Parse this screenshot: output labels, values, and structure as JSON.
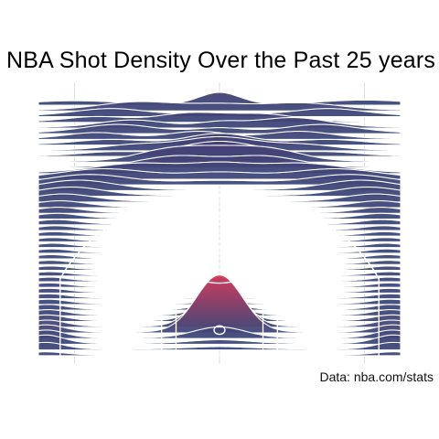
{
  "chart_data": {
    "type": "ridgeline",
    "title": "NBA Shot Density Over the Past 25 years",
    "caption": "Data: nba.com/stats",
    "xlabel": "",
    "ylabel": "",
    "grid": true,
    "legend": "none",
    "color_low": "#3b4a7a",
    "color_mid": "#4b3c73",
    "color_high": "#d23a5a",
    "court_line_color": "#ffffff",
    "x_range": [
      -250,
      250
    ],
    "y_range": [
      -50,
      400
    ],
    "rows": [
      {
        "y": 395,
        "peaks": [
          [
            0,
            0.5,
            28
          ],
          [
            -200,
            0.15,
            60
          ],
          [
            200,
            0.18,
            60
          ]
        ]
      },
      {
        "y": 385,
        "peaks": [
          [
            -110,
            0.35,
            55
          ],
          [
            110,
            0.3,
            55
          ],
          [
            0,
            0.2,
            40
          ]
        ]
      },
      {
        "y": 375,
        "peaks": [
          [
            -150,
            0.3,
            50
          ],
          [
            150,
            0.3,
            50
          ],
          [
            0,
            0.15,
            40
          ]
        ]
      },
      {
        "y": 365,
        "peaks": [
          [
            -40,
            0.35,
            45
          ],
          [
            60,
            0.3,
            45
          ],
          [
            -170,
            0.2,
            40
          ]
        ]
      },
      {
        "y": 355,
        "peaks": [
          [
            -120,
            0.3,
            45
          ],
          [
            100,
            0.4,
            50
          ],
          [
            0,
            0.2,
            30
          ]
        ]
      },
      {
        "y": 345,
        "peaks": [
          [
            -140,
            0.35,
            50
          ],
          [
            140,
            0.35,
            50
          ],
          [
            0,
            0.2,
            35
          ]
        ]
      },
      {
        "y": 335,
        "peaks": [
          [
            -30,
            0.3,
            40
          ],
          [
            110,
            0.3,
            45
          ],
          [
            -170,
            0.25,
            40
          ]
        ]
      },
      {
        "y": 325,
        "peaks": [
          [
            0,
            0.45,
            45
          ],
          [
            -150,
            0.2,
            45
          ],
          [
            150,
            0.2,
            45
          ]
        ]
      },
      {
        "y": 315,
        "peaks": [
          [
            0,
            0.55,
            55
          ],
          [
            -120,
            0.2,
            40
          ],
          [
            120,
            0.2,
            40
          ]
        ]
      },
      {
        "y": 305,
        "peaks": [
          [
            0,
            0.6,
            55
          ],
          [
            -150,
            0.15,
            40
          ],
          [
            150,
            0.15,
            40
          ]
        ]
      },
      {
        "y": 295,
        "peaks": [
          [
            0,
            0.6,
            65
          ],
          [
            -80,
            0.25,
            40
          ],
          [
            80,
            0.25,
            40
          ]
        ]
      },
      {
        "y": 285,
        "peaks": [
          [
            -60,
            0.45,
            50
          ],
          [
            60,
            0.45,
            50
          ]
        ]
      },
      {
        "y": 275,
        "peaks": [
          [
            -110,
            0.4,
            60
          ],
          [
            110,
            0.4,
            60
          ],
          [
            0,
            0.3,
            40
          ]
        ]
      },
      {
        "y": 265,
        "peaks": [
          [
            -160,
            0.4,
            60
          ],
          [
            160,
            0.4,
            60
          ],
          [
            0,
            0.25,
            50
          ]
        ]
      },
      {
        "y": 255,
        "peaks": [
          [
            -180,
            0.4,
            55
          ],
          [
            180,
            0.4,
            55
          ],
          [
            0,
            0.15,
            60
          ]
        ]
      },
      {
        "y": 245,
        "peaks": [
          [
            -195,
            0.4,
            50
          ],
          [
            195,
            0.4,
            50
          ]
        ]
      },
      {
        "y": 235,
        "peaks": [
          [
            -205,
            0.35,
            45
          ],
          [
            205,
            0.35,
            45
          ]
        ]
      },
      {
        "y": 225,
        "peaks": [
          [
            -215,
            0.3,
            40
          ],
          [
            215,
            0.3,
            40
          ]
        ]
      },
      {
        "y": 215,
        "peaks": [
          [
            -220,
            0.25,
            35
          ],
          [
            220,
            0.25,
            35
          ]
        ]
      },
      {
        "y": 205,
        "peaks": [
          [
            -222,
            0.22,
            30
          ],
          [
            222,
            0.22,
            30
          ]
        ]
      },
      {
        "y": 195,
        "peaks": [
          [
            -224,
            0.2,
            30
          ],
          [
            224,
            0.2,
            30
          ]
        ]
      },
      {
        "y": 185,
        "peaks": [
          [
            -225,
            0.18,
            28
          ],
          [
            225,
            0.18,
            28
          ]
        ]
      },
      {
        "y": 175,
        "peaks": [
          [
            -226,
            0.16,
            26
          ],
          [
            226,
            0.16,
            26
          ]
        ]
      },
      {
        "y": 165,
        "peaks": [
          [
            -228,
            0.15,
            25
          ],
          [
            228,
            0.15,
            25
          ]
        ]
      },
      {
        "y": 155,
        "peaks": [
          [
            -229,
            0.14,
            24
          ],
          [
            229,
            0.14,
            24
          ]
        ]
      },
      {
        "y": 145,
        "peaks": [
          [
            -230,
            0.14,
            24
          ],
          [
            230,
            0.14,
            24
          ]
        ]
      },
      {
        "y": 135,
        "peaks": [
          [
            -231,
            0.14,
            24
          ],
          [
            231,
            0.14,
            24
          ]
        ]
      },
      {
        "y": 125,
        "peaks": [
          [
            -232,
            0.14,
            24
          ],
          [
            232,
            0.14,
            24
          ]
        ]
      },
      {
        "y": 115,
        "peaks": [
          [
            -233,
            0.14,
            24
          ],
          [
            233,
            0.14,
            24
          ]
        ]
      },
      {
        "y": 105,
        "peaks": [
          [
            -233,
            0.14,
            24
          ],
          [
            233,
            0.14,
            24
          ]
        ]
      },
      {
        "y": 95,
        "peaks": [
          [
            -234,
            0.14,
            24
          ],
          [
            234,
            0.14,
            24
          ]
        ]
      },
      {
        "y": 85,
        "peaks": [
          [
            -234,
            0.15,
            24
          ],
          [
            234,
            0.15,
            24
          ]
        ]
      },
      {
        "y": 75,
        "peaks": [
          [
            -235,
            0.15,
            24
          ],
          [
            235,
            0.15,
            24
          ]
        ]
      },
      {
        "y": 65,
        "peaks": [
          [
            -235,
            0.16,
            24
          ],
          [
            235,
            0.16,
            24
          ]
        ]
      },
      {
        "y": 55,
        "peaks": [
          [
            -236,
            0.17,
            25
          ],
          [
            236,
            0.17,
            25
          ],
          [
            0,
            0.05,
            20
          ]
        ]
      },
      {
        "y": 45,
        "peaks": [
          [
            -236,
            0.18,
            25
          ],
          [
            236,
            0.18,
            25
          ],
          [
            0,
            0.15,
            22
          ]
        ]
      },
      {
        "y": 35,
        "peaks": [
          [
            -237,
            0.2,
            25
          ],
          [
            237,
            0.2,
            25
          ],
          [
            0,
            0.35,
            24
          ]
        ]
      },
      {
        "y": 25,
        "peaks": [
          [
            -237,
            0.22,
            25
          ],
          [
            237,
            0.22,
            25
          ],
          [
            0,
            0.75,
            26
          ]
        ]
      },
      {
        "y": 15,
        "peaks": [
          [
            -238,
            0.24,
            25
          ],
          [
            238,
            0.24,
            25
          ],
          [
            0,
            1.35,
            28
          ]
        ]
      },
      {
        "y": 5,
        "peaks": [
          [
            -238,
            0.26,
            25
          ],
          [
            238,
            0.26,
            25
          ],
          [
            0,
            2.1,
            30
          ]
        ]
      },
      {
        "y": -5,
        "peaks": [
          [
            -239,
            0.3,
            25
          ],
          [
            239,
            0.3,
            25
          ],
          [
            0,
            2.4,
            32
          ]
        ]
      },
      {
        "y": -15,
        "peaks": [
          [
            -239,
            0.32,
            25
          ],
          [
            239,
            0.32,
            25
          ],
          [
            0,
            0.45,
            35
          ]
        ]
      },
      {
        "y": -25,
        "peaks": [
          [
            -240,
            0.35,
            25
          ],
          [
            240,
            0.35,
            25
          ],
          [
            0,
            0.15,
            40
          ]
        ]
      },
      {
        "y": -35,
        "peaks": [
          [
            -240,
            0.28,
            25
          ],
          [
            240,
            0.28,
            25
          ],
          [
            0,
            0.1,
            45
          ]
        ]
      },
      {
        "y": -45,
        "peaks": [
          [
            -240,
            0.12,
            25
          ],
          [
            240,
            0.12,
            25
          ]
        ]
      }
    ]
  }
}
